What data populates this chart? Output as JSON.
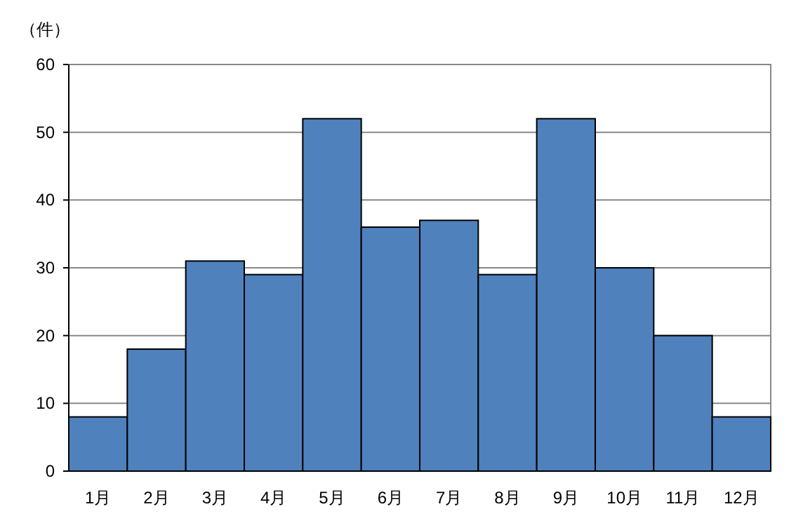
{
  "chart_data": {
    "type": "bar",
    "ylabel": "（件）",
    "categories": [
      "1月",
      "2月",
      "3月",
      "4月",
      "5月",
      "6月",
      "7月",
      "8月",
      "9月",
      "10月",
      "11月",
      "12月"
    ],
    "values": [
      8,
      18,
      31,
      29,
      52,
      36,
      37,
      29,
      52,
      30,
      20,
      8
    ],
    "color": "#4f81bd",
    "ylim": [
      0,
      60
    ],
    "yticks": [
      0,
      10,
      20,
      30,
      40,
      50,
      60
    ],
    "grid": "y"
  }
}
